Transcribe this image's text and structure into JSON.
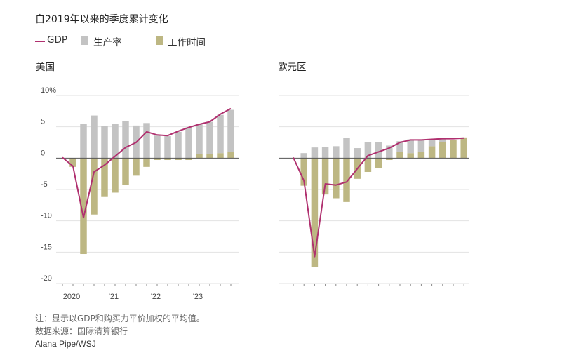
{
  "title": "自2019年以来的季度累计变化",
  "legend": [
    {
      "label": "GDP",
      "kind": "line",
      "color": "#b0306f"
    },
    {
      "label": "生产率",
      "kind": "box",
      "color": "#c3c3c3"
    },
    {
      "label": "工作时间",
      "kind": "box",
      "color": "#bdb783"
    }
  ],
  "colors": {
    "gdp": "#b0306f",
    "productivity": "#c3c3c3",
    "hours": "#bdb783",
    "grid": "#e2e2e2",
    "zero": "#555555"
  },
  "notes": {
    "note": "注：显示以GDP和购买力平价加权的平均值。",
    "source": "数据来源：国际清算银行",
    "credit": "Alana Pipe/WSJ"
  },
  "chart_data": [
    {
      "type": "bar",
      "title": "美国",
      "ylim": [
        -20,
        10
      ],
      "yticks": [
        10,
        5,
        0,
        -5,
        -10,
        -15,
        -20
      ],
      "ytick_labels": [
        "10%",
        "5",
        "0",
        "-5",
        "-10",
        "-15",
        "-20"
      ],
      "xtick_labels": [
        "2020",
        "'21",
        "'22",
        "'23"
      ],
      "categories": [
        "2019Q4",
        "2020Q1",
        "2020Q2",
        "2020Q3",
        "2020Q4",
        "2021Q1",
        "2021Q2",
        "2021Q3",
        "2021Q4",
        "2022Q1",
        "2022Q2",
        "2022Q3",
        "2022Q4",
        "2023Q1",
        "2023Q2",
        "2023Q3",
        "2023Q4"
      ],
      "series": [
        {
          "name": "生产率",
          "values": [
            0,
            0,
            5.5,
            6.8,
            5.1,
            5.5,
            5.9,
            5.2,
            5.6,
            3.6,
            3.5,
            4.2,
            4.9,
            4.8,
            5.1,
            6.1,
            6.7
          ]
        },
        {
          "name": "工作时间",
          "values": [
            0,
            -1.4,
            -15.3,
            -9.0,
            -6.2,
            -5.5,
            -4.3,
            -2.8,
            -1.4,
            -0.3,
            -0.3,
            -0.3,
            -0.3,
            0.6,
            0.7,
            0.8,
            1.0
          ]
        },
        {
          "name": "GDP",
          "values": [
            0.1,
            -1.3,
            -9.5,
            -2.2,
            -1.1,
            0.3,
            1.7,
            2.5,
            4.2,
            3.7,
            3.6,
            4.3,
            4.9,
            5.4,
            5.8,
            7.0,
            7.9
          ]
        }
      ]
    },
    {
      "type": "bar",
      "title": "欧元区",
      "ylim": [
        -20,
        10
      ],
      "categories": [
        "2019Q4",
        "2020Q1",
        "2020Q2",
        "2020Q3",
        "2020Q4",
        "2021Q1",
        "2021Q2",
        "2021Q3",
        "2021Q4",
        "2022Q1",
        "2022Q2",
        "2022Q3",
        "2022Q4",
        "2023Q1",
        "2023Q2",
        "2023Q3",
        "2023Q4"
      ],
      "series": [
        {
          "name": "生产率",
          "values": [
            0,
            0.8,
            1.7,
            1.8,
            1.9,
            3.2,
            1.6,
            2.6,
            2.6,
            2.0,
            1.7,
            2.2,
            2.0,
            1.1,
            0.6,
            0,
            0
          ]
        },
        {
          "name": "工作时间",
          "values": [
            0,
            -4.4,
            -17.4,
            -5.8,
            -6.4,
            -7.0,
            -3.3,
            -2.2,
            -1.6,
            -0.3,
            1.0,
            0.8,
            1.0,
            1.9,
            2.5,
            2.9,
            3.3
          ]
        },
        {
          "name": "GDP",
          "values": [
            0.1,
            -3.6,
            -15.7,
            -4.1,
            -4.3,
            -3.8,
            -1.7,
            0.4,
            1.0,
            1.6,
            2.5,
            2.9,
            2.9,
            3.0,
            3.1,
            3.1,
            3.2
          ]
        }
      ]
    }
  ]
}
